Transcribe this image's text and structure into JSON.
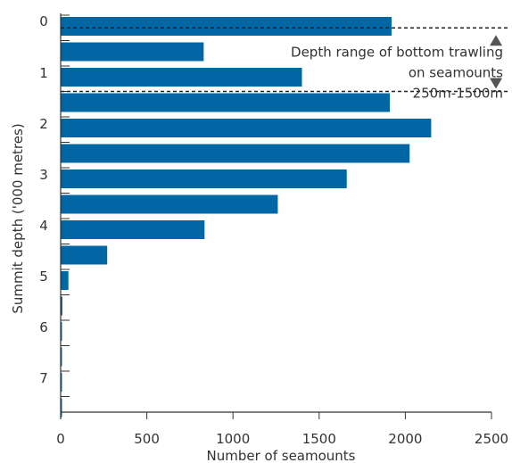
{
  "chart_data": {
    "type": "bar",
    "orientation": "horizontal",
    "xlabel": "Number of seamounts",
    "ylabel": "Summit depth ('000 metres)",
    "xlim": [
      0,
      2500
    ],
    "xticks": [
      "0",
      "500",
      "1000",
      "1500",
      "2000",
      "2500"
    ],
    "ylim": [
      0,
      8
    ],
    "yticks": [
      "0",
      "1",
      "2",
      "3",
      "4",
      "5",
      "6",
      "7"
    ],
    "bar_color": "#0066a4",
    "grid": false,
    "depth_start": [
      0,
      0.5,
      1,
      1.5,
      2,
      2.5,
      3,
      3.5,
      4,
      4.5,
      5,
      5.5,
      6,
      6.5,
      7,
      7.5
    ],
    "values": [
      1920,
      830,
      1400,
      1910,
      2150,
      2025,
      1660,
      1260,
      835,
      270,
      45,
      10,
      5,
      3,
      2,
      1
    ],
    "annotation": {
      "lines": [
        "Depth range of bottom trawling",
        "on seamounts",
        "250m-1500m"
      ],
      "range": [
        0.25,
        1.5
      ],
      "line_style": "dashed",
      "markers": [
        "up-triangle",
        "down-triangle"
      ]
    }
  }
}
